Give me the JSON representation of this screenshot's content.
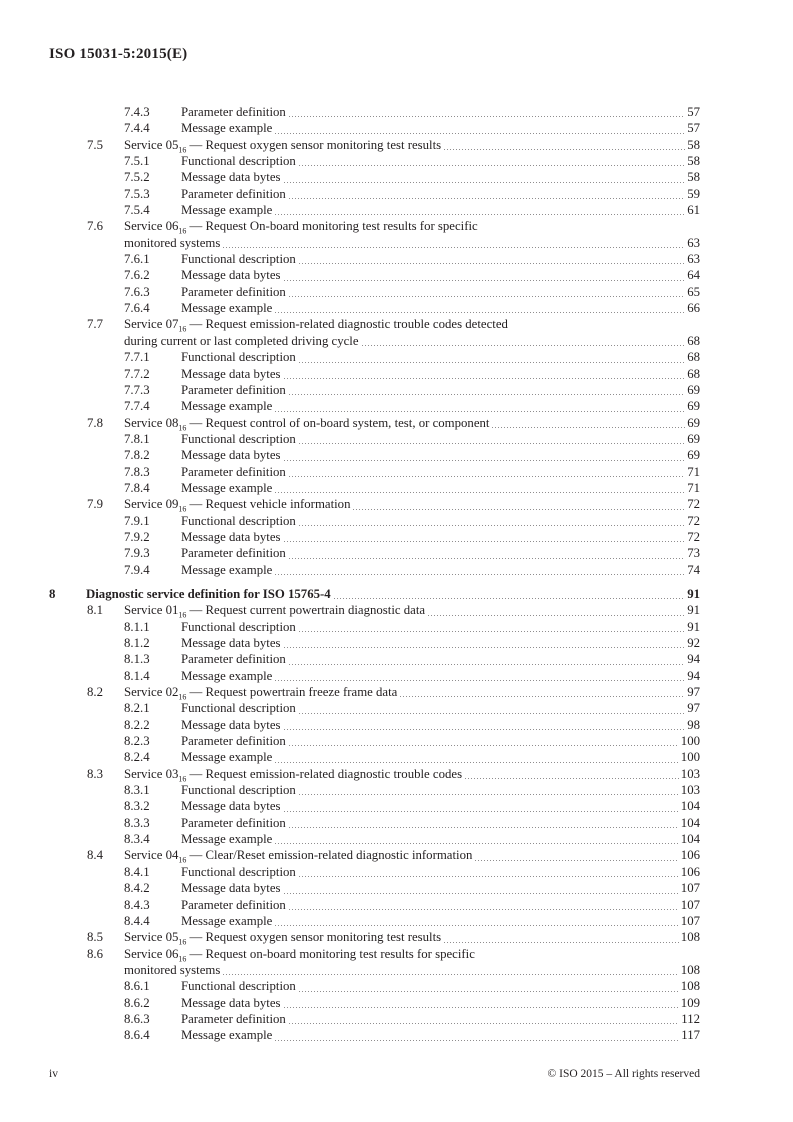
{
  "header": {
    "doc_id": "ISO 15031-5:2015(E)"
  },
  "footer": {
    "page_number": "iv",
    "copyright": "© ISO 2015 – All rights reserved"
  },
  "toc": {
    "entries": [
      {
        "level": 3,
        "num": "7.4.3",
        "title": "Parameter definition",
        "page": "57"
      },
      {
        "level": 3,
        "num": "7.4.4",
        "title": "Message example",
        "page": "57"
      },
      {
        "level": 2,
        "num": "7.5",
        "title": [
          {
            "t": "Service 05"
          },
          {
            "sub": "16"
          },
          {
            "t": " — Request oxygen sensor monitoring test results"
          }
        ],
        "page": "58"
      },
      {
        "level": 3,
        "num": "7.5.1",
        "title": "Functional description",
        "page": "58"
      },
      {
        "level": 3,
        "num": "7.5.2",
        "title": "Message data bytes",
        "page": "58"
      },
      {
        "level": 3,
        "num": "7.5.3",
        "title": "Parameter definition",
        "page": "59"
      },
      {
        "level": 3,
        "num": "7.5.4",
        "title": "Message example",
        "page": "61"
      },
      {
        "level": 2,
        "num": "7.6",
        "title": [
          {
            "t": "Service 06"
          },
          {
            "sub": "16"
          },
          {
            "t": " — Request On-board monitoring test results for specific"
          }
        ],
        "line2": "monitored systems",
        "page": "63"
      },
      {
        "level": 3,
        "num": "7.6.1",
        "title": "Functional description",
        "page": "63"
      },
      {
        "level": 3,
        "num": "7.6.2",
        "title": "Message data bytes",
        "page": "64"
      },
      {
        "level": 3,
        "num": "7.6.3",
        "title": "Parameter definition",
        "page": "65"
      },
      {
        "level": 3,
        "num": "7.6.4",
        "title": "Message example",
        "page": "66"
      },
      {
        "level": 2,
        "num": "7.7",
        "title": [
          {
            "t": "Service 07"
          },
          {
            "sub": "16"
          },
          {
            "t": " — Request emission-related diagnostic trouble codes detected"
          }
        ],
        "line2": "during current or last completed driving cycle",
        "page": "68"
      },
      {
        "level": 3,
        "num": "7.7.1",
        "title": "Functional description",
        "page": "68"
      },
      {
        "level": 3,
        "num": "7.7.2",
        "title": "Message data bytes",
        "page": "68"
      },
      {
        "level": 3,
        "num": "7.7.3",
        "title": "Parameter definition",
        "page": "69"
      },
      {
        "level": 3,
        "num": "7.7.4",
        "title": "Message example",
        "page": "69"
      },
      {
        "level": 2,
        "num": "7.8",
        "title": [
          {
            "t": "Service 08"
          },
          {
            "sub": "16"
          },
          {
            "t": " — Request control of on-board system, test, or component"
          }
        ],
        "page": "69"
      },
      {
        "level": 3,
        "num": "7.8.1",
        "title": "Functional description",
        "page": "69"
      },
      {
        "level": 3,
        "num": "7.8.2",
        "title": "Message data bytes",
        "page": "69"
      },
      {
        "level": 3,
        "num": "7.8.3",
        "title": "Parameter definition",
        "page": "71"
      },
      {
        "level": 3,
        "num": "7.8.4",
        "title": "Message example",
        "page": "71"
      },
      {
        "level": 2,
        "num": "7.9",
        "title": [
          {
            "t": "Service 09"
          },
          {
            "sub": "16"
          },
          {
            "t": " — Request vehicle information"
          }
        ],
        "page": "72"
      },
      {
        "level": 3,
        "num": "7.9.1",
        "title": "Functional description",
        "page": "72"
      },
      {
        "level": 3,
        "num": "7.9.2",
        "title": "Message data bytes",
        "page": "72"
      },
      {
        "level": 3,
        "num": "7.9.3",
        "title": "Parameter definition",
        "page": "73"
      },
      {
        "level": 3,
        "num": "7.9.4",
        "title": "Message example",
        "page": "74"
      },
      {
        "level": 1,
        "num": "8",
        "title": "Diagnostic service definition for ISO 15765-4",
        "page": "91"
      },
      {
        "level": 2,
        "num": "8.1",
        "title": [
          {
            "t": "Service 01"
          },
          {
            "sub": "16"
          },
          {
            "t": " — Request current powertrain diagnostic data"
          }
        ],
        "page": "91"
      },
      {
        "level": 3,
        "num": "8.1.1",
        "title": "Functional description",
        "page": "91"
      },
      {
        "level": 3,
        "num": "8.1.2",
        "title": "Message data bytes",
        "page": "92"
      },
      {
        "level": 3,
        "num": "8.1.3",
        "title": "Parameter definition",
        "page": "94"
      },
      {
        "level": 3,
        "num": "8.1.4",
        "title": "Message example",
        "page": "94"
      },
      {
        "level": 2,
        "num": "8.2",
        "title": [
          {
            "t": "Service 02"
          },
          {
            "sub": "16"
          },
          {
            "t": " — Request powertrain freeze frame data"
          }
        ],
        "page": "97"
      },
      {
        "level": 3,
        "num": "8.2.1",
        "title": "Functional description",
        "page": "97"
      },
      {
        "level": 3,
        "num": "8.2.2",
        "title": "Message data bytes",
        "page": "98"
      },
      {
        "level": 3,
        "num": "8.2.3",
        "title": "Parameter definition",
        "page": "100"
      },
      {
        "level": 3,
        "num": "8.2.4",
        "title": "Message example",
        "page": "100"
      },
      {
        "level": 2,
        "num": "8.3",
        "title": [
          {
            "t": "Service 03"
          },
          {
            "sub": "16"
          },
          {
            "t": " — Request emission-related diagnostic trouble codes"
          }
        ],
        "page": "103"
      },
      {
        "level": 3,
        "num": "8.3.1",
        "title": "Functional description",
        "page": "103"
      },
      {
        "level": 3,
        "num": "8.3.2",
        "title": "Message data bytes",
        "page": "104"
      },
      {
        "level": 3,
        "num": "8.3.3",
        "title": "Parameter definition",
        "page": "104"
      },
      {
        "level": 3,
        "num": "8.3.4",
        "title": "Message example",
        "page": "104"
      },
      {
        "level": 2,
        "num": "8.4",
        "title": [
          {
            "t": "Service 04"
          },
          {
            "sub": "16"
          },
          {
            "t": " — Clear/Reset emission-related diagnostic information"
          }
        ],
        "page": "106"
      },
      {
        "level": 3,
        "num": "8.4.1",
        "title": "Functional description",
        "page": "106"
      },
      {
        "level": 3,
        "num": "8.4.2",
        "title": "Message data bytes",
        "page": "107"
      },
      {
        "level": 3,
        "num": "8.4.3",
        "title": "Parameter definition",
        "page": "107"
      },
      {
        "level": 3,
        "num": "8.4.4",
        "title": "Message example",
        "page": "107"
      },
      {
        "level": 2,
        "num": "8.5",
        "title": [
          {
            "t": "Service 05"
          },
          {
            "sub": "16"
          },
          {
            "t": " — Request oxygen sensor monitoring test results"
          }
        ],
        "page": "108"
      },
      {
        "level": 2,
        "num": "8.6",
        "title": [
          {
            "t": "Service 06"
          },
          {
            "sub": "16"
          },
          {
            "t": " — Request on-board monitoring test results for specific"
          }
        ],
        "line2": "monitored systems",
        "page": "108"
      },
      {
        "level": 3,
        "num": "8.6.1",
        "title": "Functional description",
        "page": "108"
      },
      {
        "level": 3,
        "num": "8.6.2",
        "title": "Message data bytes",
        "page": "109"
      },
      {
        "level": 3,
        "num": "8.6.3",
        "title": "Parameter definition",
        "page": "112"
      },
      {
        "level": 3,
        "num": "8.6.4",
        "title": "Message example",
        "page": "117"
      }
    ]
  }
}
